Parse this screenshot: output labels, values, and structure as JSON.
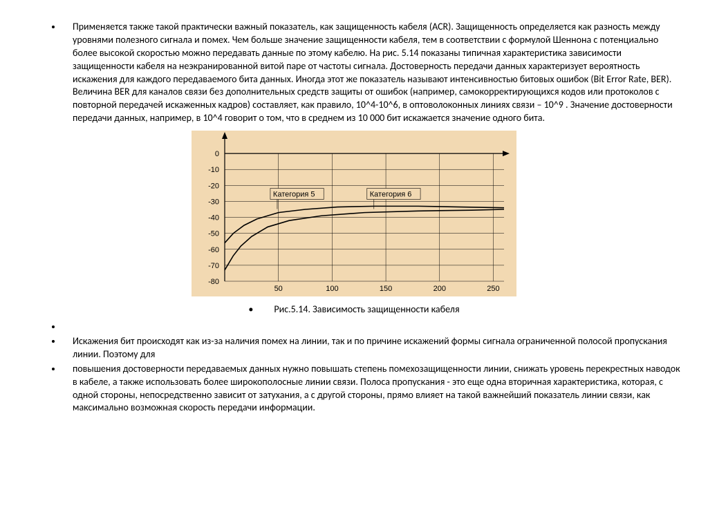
{
  "paragraphs": {
    "p1": "Применяется также такой практически важный показатель, как защищенность кабеля (ACR). Защищенность определяется как разность между уровнями полезного сигнала и помех. Чем больше значение защищенности кабеля, тем в соответствии с формулой Шеннона с потенциально более высокой скоростью можно передавать данные по этому кабелю. На рис. 5.14 показаны типичная характеристика зависимости защищенности кабеля на неэкранированной витой паре от частоты сигнала. Достоверность передачи данных характеризует вероятность искажения для каждого передаваемого бита данных. Иногда этот же показатель называют интенсивностью битовых ошибок (Bit Error Rate, BER). Величина BER для каналов связи без дополнительных средств защиты от ошибок (например, самокорректирующихся кодов или протоколов с повторной передачей искаженных кадров) составляет, как правило, 10^4-10^6, в оптоволоконных линиях связи – 10^9 . Значение достоверности передачи данных, например, в 10^4 говорит о том, что в среднем из 10 000 бит искажается значение одного бита.",
    "p2": " ",
    "p3": "Искажения бит происходят как из-за наличия помех на линии, так и по причине искажений формы сигнала ограниченной полосой пропускания линии. Поэтому для",
    "p4": "повышения достоверности передаваемых данных нужно повышать степень помехозащищенности линии, снижать уровень перекрестных наводок в кабеле, а также использовать более широкополосные линии связи. Полоса пропускания - это еще одна вторичная характеристика, которая, с одной стороны, непосредственно зависит от затухания, а с другой стороны, прямо влияет на такой важнейший показатель линии связи, как максимально возможная скорость передачи информации."
  },
  "chart": {
    "caption": "Рис.5.14. Зависимость защищенности кабеля",
    "background": "#f2d9b2",
    "grid_color": "#000000",
    "axis_color": "#000000",
    "tick_fontsize": 11,
    "label_fontsize": 11,
    "line_width": 1.6,
    "y_ticks": [
      0,
      -10,
      -20,
      -30,
      -40,
      -50,
      -60,
      -70,
      -80
    ],
    "x_ticks": [
      50,
      100,
      150,
      200,
      250
    ],
    "x_range": [
      0,
      260
    ],
    "y_range": [
      -80,
      10
    ],
    "series": [
      {
        "label": "Категория 5",
        "label_pos_x": 45,
        "label_pos_y": -27,
        "points": [
          [
            0,
            -73
          ],
          [
            8,
            -64
          ],
          [
            15,
            -58
          ],
          [
            25,
            -52
          ],
          [
            40,
            -46
          ],
          [
            60,
            -42
          ],
          [
            90,
            -39
          ],
          [
            130,
            -37
          ],
          [
            180,
            -36
          ],
          [
            230,
            -35.5
          ],
          [
            260,
            -35
          ]
        ],
        "color": "#000000"
      },
      {
        "label": "Категория 6",
        "label_pos_x": 135,
        "label_pos_y": -27,
        "points": [
          [
            0,
            -56
          ],
          [
            8,
            -50
          ],
          [
            18,
            -45
          ],
          [
            30,
            -41
          ],
          [
            50,
            -37
          ],
          [
            75,
            -35
          ],
          [
            105,
            -33.5
          ],
          [
            140,
            -33
          ],
          [
            180,
            -33
          ],
          [
            220,
            -33.5
          ],
          [
            260,
            -34
          ]
        ],
        "color": "#000000"
      }
    ]
  }
}
